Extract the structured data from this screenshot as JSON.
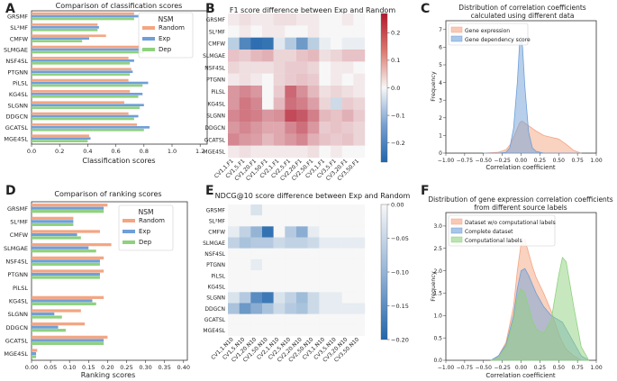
{
  "panels": {
    "A": {
      "letter": "A",
      "title": "Comparison of classification scores",
      "xlabel": "Classification scores",
      "xticks": [
        "0.0",
        "0.2",
        "0.4",
        "0.6",
        "0.8",
        "1.0",
        "1.2"
      ],
      "legend_title": "NSM",
      "legend": [
        "Random",
        "Exp",
        "Dep"
      ]
    },
    "B": {
      "letter": "B",
      "title": "F1 score difference between Exp and Random"
    },
    "C": {
      "letter": "C",
      "title_lines": [
        "Distribution of correlation coefficients",
        "calculated using different data"
      ],
      "xlabel": "Correlation coefficient",
      "ylabel": "Frequency",
      "legend": [
        "Gene expression",
        "Gene dependency score"
      ]
    },
    "D": {
      "letter": "D",
      "title": "Comparison of ranking scores",
      "xlabel": "Ranking scores",
      "xticks": [
        "0.00",
        "0.05",
        "0.10",
        "0.15",
        "0.20",
        "0.25",
        "0.30",
        "0.35",
        "0.40"
      ],
      "legend_title": "NSM",
      "legend": [
        "Random",
        "Exp",
        "Dep"
      ]
    },
    "E": {
      "letter": "E",
      "title": "NDCG@10 score difference between Exp and Random"
    },
    "F": {
      "letter": "F",
      "title_lines": [
        "Distribution of gene expression correlation coefficients",
        "from different source labels"
      ],
      "xlabel": "Correlation coefficient",
      "ylabel": "Frequency",
      "legend": [
        "Dataset w/o computational labels",
        "Complete dataset",
        "Computational labels"
      ]
    }
  },
  "colors": {
    "random": "#f4a582",
    "exp": "#6f9fd8",
    "dep": "#8fd17e",
    "neg": "#2166ac",
    "pos": "#b2182b"
  },
  "chart_data": [
    {
      "id": "A",
      "type": "bar",
      "orientation": "horizontal",
      "title": "Comparison of classification scores",
      "xlabel": "Classification scores",
      "xlim": [
        0,
        1.25
      ],
      "categories": [
        "GRSMF",
        "SL²MF",
        "CMFW",
        "SLMGAE",
        "NSF4SL",
        "PTGNN",
        "PiLSL",
        "KG4SL",
        "SLGNN",
        "DDGCN",
        "GCATSL",
        "MGE4SL"
      ],
      "series": [
        {
          "name": "Random",
          "values": [
            0.73,
            0.47,
            0.53,
            0.78,
            0.69,
            0.71,
            0.69,
            0.7,
            0.66,
            0.69,
            0.75,
            0.41
          ]
        },
        {
          "name": "Exp",
          "values": [
            0.76,
            0.48,
            0.41,
            0.84,
            0.73,
            0.72,
            0.83,
            0.79,
            0.8,
            0.76,
            0.84,
            0.42
          ]
        },
        {
          "name": "Dep",
          "values": [
            0.73,
            0.47,
            0.36,
            0.8,
            0.7,
            0.7,
            0.79,
            0.76,
            0.77,
            0.73,
            0.8,
            0.4
          ]
        }
      ]
    },
    {
      "id": "B",
      "type": "heatmap",
      "title": "F1 score difference between Exp and Random",
      "rows": [
        "GRSMF",
        "SL²MF",
        "CMFW",
        "SLMGAE",
        "NSF4SL",
        "PTGNN",
        "PiLSL",
        "KG4SL",
        "SLGNN",
        "DDGCN",
        "GCATSL",
        "MGE4SL"
      ],
      "cols": [
        "CV1,1.F1",
        "CV1,5.F1",
        "CV1,20.F1",
        "CV1,50.F1",
        "CV2,1.F1",
        "CV2,5.F1",
        "CV2,20.F1",
        "CV2,50.F1",
        "CV3,1.F1",
        "CV3,5.F1",
        "CV3,20.F1",
        "CV3,50.F1"
      ],
      "vmin": -0.27,
      "vmax": 0.27,
      "colorbar_ticks": [
        "0.2",
        "0.1",
        "0.0",
        "−0.1",
        "−0.2"
      ],
      "values": [
        [
          0.01,
          0.02,
          0.01,
          0.01,
          0.02,
          0.02,
          0.01,
          0.01,
          0.0,
          0.0,
          0.01,
          0.0
        ],
        [
          0.0,
          0.01,
          0.0,
          0.01,
          0.01,
          0.0,
          0.0,
          0.01,
          0.0,
          0.0,
          0.0,
          0.0
        ],
        [
          -0.06,
          -0.2,
          -0.25,
          -0.24,
          -0.02,
          -0.07,
          -0.16,
          -0.06,
          -0.01,
          0.0,
          -0.01,
          -0.01
        ],
        [
          0.05,
          0.04,
          0.06,
          0.07,
          0.03,
          0.03,
          0.05,
          0.06,
          0.02,
          0.03,
          0.05,
          0.05
        ],
        [
          0.03,
          0.02,
          0.02,
          0.02,
          0.03,
          0.04,
          0.04,
          0.03,
          0.0,
          0.01,
          0.01,
          0.0
        ],
        [
          0.01,
          0.02,
          0.01,
          0.0,
          0.03,
          0.04,
          0.05,
          0.04,
          0.0,
          0.01,
          0.0,
          0.01
        ],
        [
          0.1,
          0.12,
          0.1,
          0.0,
          0.04,
          0.16,
          0.11,
          0.06,
          0.02,
          0.03,
          0.02,
          0.01
        ],
        [
          0.1,
          0.14,
          0.12,
          0.0,
          0.06,
          0.15,
          0.13,
          0.09,
          0.03,
          -0.04,
          0.04,
          0.03
        ],
        [
          0.12,
          0.14,
          0.13,
          0.1,
          0.11,
          0.2,
          0.18,
          0.13,
          0.06,
          0.05,
          0.07,
          0.04
        ],
        [
          0.1,
          0.12,
          0.1,
          0.08,
          0.08,
          0.12,
          0.15,
          0.1,
          0.04,
          0.05,
          0.04,
          0.03
        ],
        [
          0.12,
          0.1,
          0.09,
          0.06,
          0.08,
          0.1,
          0.12,
          0.07,
          0.05,
          0.04,
          0.05,
          0.03
        ],
        [
          0.01,
          0.02,
          0.01,
          0.01,
          0.01,
          0.01,
          0.01,
          0.02,
          0.0,
          0.01,
          0.0,
          0.0
        ]
      ]
    },
    {
      "id": "C",
      "type": "area",
      "title": "Distribution of correlation coefficients calculated using different data",
      "xlabel": "Correlation coefficient",
      "ylabel": "Frequency",
      "xlim": [
        -1.0,
        1.0
      ],
      "ylim": [
        0,
        7.5
      ],
      "xticks": [
        "−1.00",
        "−0.75",
        "−0.50",
        "−0.25",
        "0.00",
        "0.25",
        "0.50",
        "0.75",
        "1.00"
      ],
      "yticks": [
        "0",
        "1",
        "2",
        "3",
        "4",
        "5",
        "6",
        "7"
      ],
      "x": [
        -0.5,
        -0.3,
        -0.2,
        -0.15,
        -0.1,
        -0.05,
        -0.02,
        0.0,
        0.02,
        0.05,
        0.1,
        0.15,
        0.2,
        0.3,
        0.4,
        0.5,
        0.6,
        0.7,
        0.8
      ],
      "series": [
        {
          "name": "Gene expression",
          "values": [
            0.0,
            0.05,
            0.2,
            0.45,
            0.9,
            1.4,
            1.7,
            1.8,
            1.8,
            1.7,
            1.55,
            1.4,
            1.25,
            1.0,
            0.9,
            0.8,
            0.5,
            0.15,
            0.0
          ]
        },
        {
          "name": "Gene dependency score",
          "values": [
            0.0,
            0.0,
            0.05,
            0.3,
            1.4,
            4.0,
            6.2,
            6.6,
            6.0,
            3.8,
            1.2,
            0.3,
            0.1,
            0.0,
            0.0,
            0.0,
            0.0,
            0.0,
            0.0
          ]
        }
      ]
    },
    {
      "id": "D",
      "type": "bar",
      "orientation": "horizontal",
      "title": "Comparison of ranking scores",
      "xlabel": "Ranking scores",
      "xlim": [
        0,
        0.41
      ],
      "categories": [
        "GRSMF",
        "SL²MF",
        "CMFW",
        "SLMGAE",
        "NSF4SL",
        "PTGNN",
        "PiLSL",
        "KG4SL",
        "SLGNN",
        "DDGCN",
        "GCATSL",
        "MGE4SL"
      ],
      "series": [
        {
          "name": "Random",
          "values": [
            0.2,
            0.11,
            0.18,
            0.21,
            0.19,
            0.19,
            0.0,
            0.19,
            0.13,
            0.14,
            0.2,
            0.015
          ]
        },
        {
          "name": "Exp",
          "values": [
            0.19,
            0.11,
            0.12,
            0.15,
            0.18,
            0.18,
            0.0,
            0.16,
            0.06,
            0.07,
            0.19,
            0.012
          ]
        },
        {
          "name": "Dep",
          "values": [
            0.19,
            0.11,
            0.13,
            0.17,
            0.18,
            0.18,
            0.0,
            0.17,
            0.08,
            0.09,
            0.19,
            0.012
          ]
        }
      ]
    },
    {
      "id": "E",
      "type": "heatmap",
      "title": "NDCG@10 score difference between Exp and Random",
      "rows": [
        "GRSMF",
        "SL²MF",
        "CMFW",
        "SLMGAE",
        "NSF4SL",
        "PTGNN",
        "PiLSL",
        "KG4SL",
        "SLGNN",
        "DDGCN",
        "GCATSL",
        "MGE4SL"
      ],
      "cols": [
        "CV1,1.N10",
        "CV1,5.N10",
        "CV1,20.N10",
        "CV1,50.N10",
        "CV2,1.N10",
        "CV2,5.N10",
        "CV2,20.N10",
        "CV2,50.N10",
        "CV3,1.N10",
        "CV3,5.N10",
        "CV3,20.N10",
        "CV3,50.N10"
      ],
      "vmin": -0.2,
      "vmax": 0.0,
      "colorbar_ticks": [
        "0.00",
        "−0.05",
        "−0.10",
        "−0.15",
        "−0.20"
      ],
      "values": [
        [
          0.0,
          0.0,
          -0.02,
          0.0,
          0.0,
          0.0,
          0.0,
          0.0,
          0.0,
          0.0,
          0.0,
          0.0
        ],
        [
          0.0,
          0.0,
          0.0,
          0.0,
          0.0,
          0.0,
          0.0,
          0.0,
          0.0,
          0.0,
          0.0,
          0.0
        ],
        [
          -0.01,
          -0.04,
          -0.08,
          -0.18,
          0.0,
          -0.05,
          -0.09,
          -0.01,
          0.0,
          0.0,
          0.0,
          0.0
        ],
        [
          -0.04,
          -0.06,
          -0.05,
          -0.05,
          -0.03,
          -0.04,
          -0.04,
          -0.03,
          -0.01,
          -0.01,
          -0.01,
          -0.01
        ],
        [
          0.0,
          0.0,
          0.0,
          0.0,
          0.0,
          0.0,
          0.0,
          0.0,
          0.0,
          0.0,
          0.0,
          0.0
        ],
        [
          0.0,
          0.0,
          -0.01,
          0.0,
          0.0,
          0.0,
          0.0,
          0.0,
          0.0,
          0.0,
          0.0,
          0.0
        ],
        [
          0.0,
          0.0,
          0.0,
          0.0,
          0.0,
          0.0,
          0.0,
          0.0,
          0.0,
          0.0,
          0.0,
          0.0
        ],
        [
          0.0,
          0.0,
          0.0,
          0.0,
          0.0,
          0.0,
          0.0,
          0.0,
          0.0,
          0.0,
          0.0,
          0.0
        ],
        [
          -0.02,
          -0.05,
          -0.14,
          -0.17,
          -0.02,
          -0.04,
          -0.07,
          -0.03,
          -0.01,
          -0.01,
          0.0,
          0.0
        ],
        [
          -0.06,
          -0.12,
          -0.09,
          -0.06,
          -0.03,
          -0.05,
          -0.06,
          -0.03,
          -0.01,
          -0.01,
          -0.01,
          -0.01
        ],
        [
          0.0,
          0.0,
          0.0,
          0.0,
          0.0,
          0.0,
          0.0,
          0.0,
          0.0,
          0.0,
          0.0,
          0.0
        ],
        [
          0.0,
          0.0,
          0.0,
          0.0,
          0.0,
          0.0,
          0.0,
          0.0,
          0.0,
          0.0,
          0.0,
          0.0
        ]
      ]
    },
    {
      "id": "F",
      "type": "area",
      "title": "Distribution of gene expression correlation coefficients from different source labels",
      "xlabel": "Correlation coefficient",
      "ylabel": "Frequency",
      "xlim": [
        -1.0,
        1.0
      ],
      "ylim": [
        0,
        3.3
      ],
      "xticks": [
        "−1.00",
        "−0.75",
        "−0.50",
        "−0.25",
        "0.00",
        "0.25",
        "0.50",
        "0.75",
        "1.00"
      ],
      "yticks": [
        "0.0",
        "0.5",
        "1.0",
        "1.5",
        "2.0",
        "2.5",
        "3.0"
      ],
      "x": [
        -0.4,
        -0.3,
        -0.2,
        -0.1,
        -0.05,
        0.0,
        0.05,
        0.1,
        0.15,
        0.2,
        0.3,
        0.4,
        0.5,
        0.55,
        0.6,
        0.7,
        0.8,
        0.9
      ],
      "series": [
        {
          "name": "Dataset w/o computational labels",
          "values": [
            0.0,
            0.1,
            0.4,
            1.2,
            2.0,
            2.6,
            2.7,
            2.4,
            2.1,
            1.85,
            1.5,
            1.1,
            0.6,
            0.4,
            0.25,
            0.1,
            0.0,
            0.0
          ]
        },
        {
          "name": "Complete dataset",
          "values": [
            0.0,
            0.1,
            0.35,
            1.0,
            1.6,
            2.0,
            2.05,
            1.9,
            1.7,
            1.5,
            1.2,
            1.0,
            0.9,
            0.85,
            0.7,
            0.4,
            0.1,
            0.0
          ]
        },
        {
          "name": "Computational labels",
          "values": [
            0.0,
            0.05,
            0.3,
            0.9,
            1.4,
            1.6,
            1.5,
            1.2,
            0.9,
            0.7,
            0.6,
            0.9,
            1.9,
            2.3,
            2.2,
            1.2,
            0.3,
            0.0
          ]
        }
      ]
    }
  ]
}
